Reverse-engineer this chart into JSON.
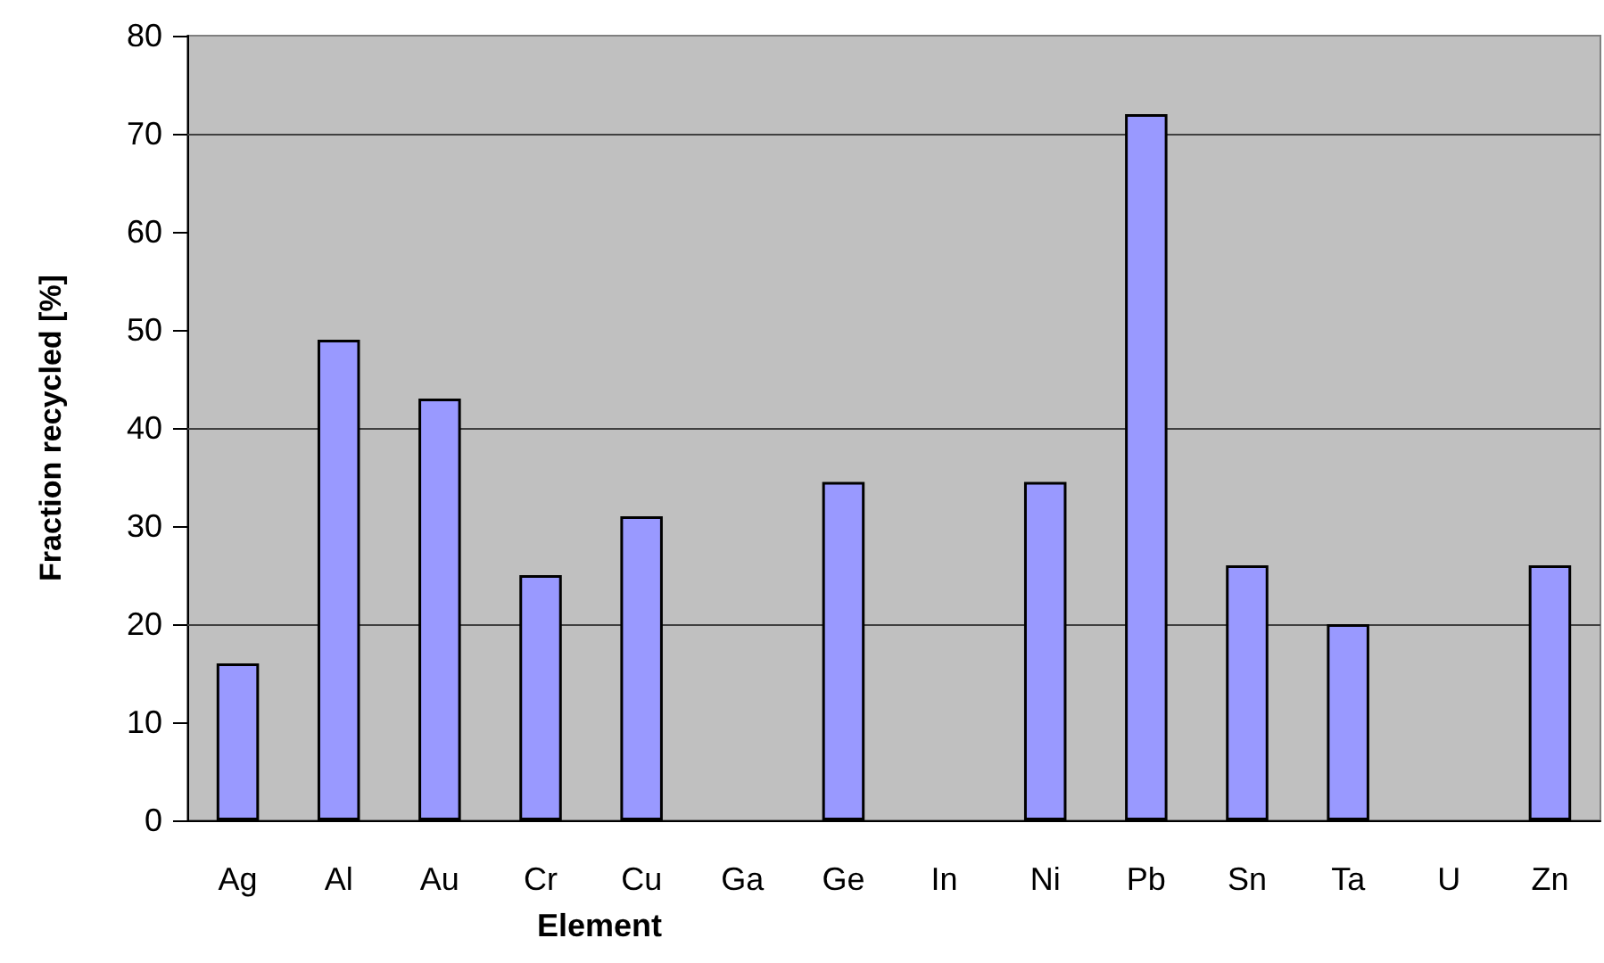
{
  "chart_data": {
    "type": "bar",
    "xlabel": "Element",
    "ylabel": "Fraction recycled [%]",
    "categories": [
      "Ag",
      "Al",
      "Au",
      "Cr",
      "Cu",
      "Ga",
      "Ge",
      "In",
      "Ni",
      "Pb",
      "Sn",
      "Ta",
      "U",
      "Zn"
    ],
    "values": [
      16,
      49,
      43,
      25,
      31,
      null,
      34.5,
      null,
      34.5,
      72,
      26,
      20,
      null,
      26
    ],
    "color": "#9999ff",
    "ylim": [
      0,
      80
    ],
    "yticks": [
      0,
      10,
      20,
      30,
      40,
      50,
      60,
      70,
      80
    ],
    "grid": false,
    "ref_lines": [
      {
        "axis": "y",
        "value": 20,
        "color": "#404040"
      },
      {
        "axis": "y",
        "value": 40,
        "color": "#404040"
      },
      {
        "axis": "y",
        "value": 70,
        "color": "#404040"
      }
    ]
  }
}
